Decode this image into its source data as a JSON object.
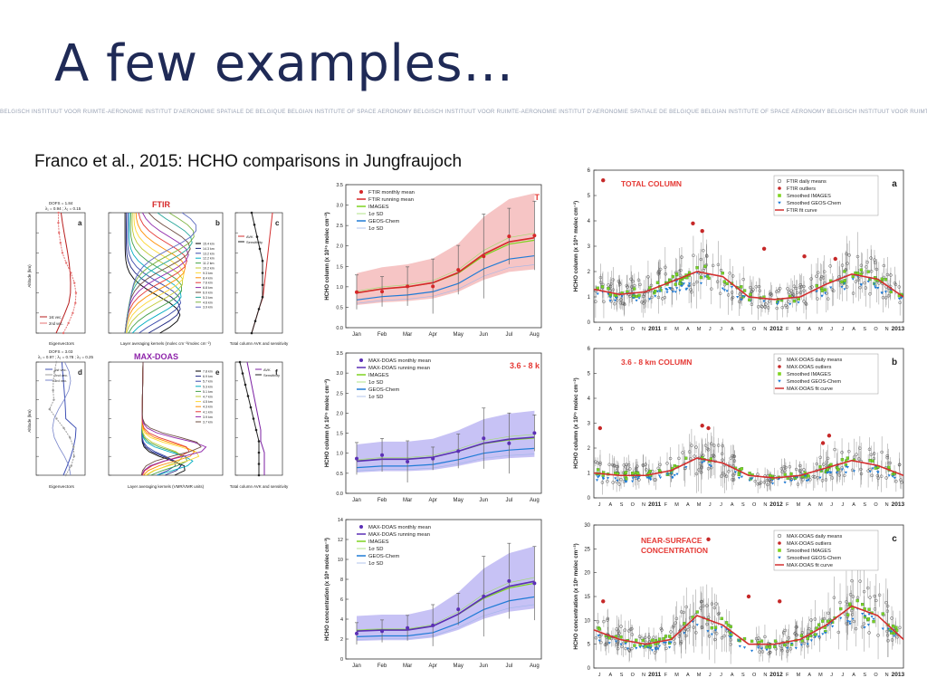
{
  "slide": {
    "title": "A few examples…",
    "banner": "BELGISCH INSTITUUT VOOR RUIMTE-AERONOMIE INSTITUT D'AERONOMIE SPATIALE DE BELGIQUE BELGIAN INSTITUTE OF SPACE AERONOMY BELGISCH INSTITUUT VOOR RUIMTE-AERONOMIE INSTITUT D'AERONOMIE SPATIALE DE BELGIQUE BELGIAN INSTITUTE OF SPACE AERONOMY BELGISCH INSTITUUT VOOR RUIMTE-AERONOMIE INSTITUT D'AERONOMIE",
    "subtitle": "Franco et al., 2015: HCHO comparisons in Jungfraujoch"
  },
  "colors": {
    "title": "#1f2a56",
    "ftir_red": "#d62728",
    "maxdoas_purple": "#5b2fb5",
    "images_green": "#7ed321",
    "geos_blue": "#1f7bd6",
    "sd_fill_red": "#f4b6b6",
    "sd_fill_purple": "#b9b3f2"
  },
  "left_figure": {
    "ftir_label": "FTIR",
    "maxdoas_label": "MAX-DOAS",
    "ftir_dofs": "DOFS = 1.84",
    "ftir_lambda": "λ₁ = 0.94 ; λ₂ = 0.15",
    "maxdoas_dofs": "DOFS = 3.03",
    "maxdoas_lambda": "λ₁ = 0.97 ; λ₂ = 0.78 ; λ₃ = 0.25",
    "panel_letters": [
      "a",
      "b",
      "c",
      "d",
      "e",
      "f"
    ],
    "ylabel": "Altitude (km)",
    "xlabel_eig": "Eigenvectors",
    "xlabel_avk_ftir": "Layer averaging kernels (molec cm⁻²/molec cm⁻²)",
    "xlabel_avk_maxdoas": "Layer averaging kernels (VMR/VMR units)",
    "xlabel_tc": "Total column AVK and sensitivity",
    "legend_eig_ftir": [
      "1st vec.",
      "2nd vec."
    ],
    "legend_eig_maxdoas": [
      "1st vec.",
      "2nd vec.",
      "3rd vec."
    ],
    "legend_tc": [
      "AVK",
      "Sensitivity"
    ],
    "ftir_layers": [
      "15.4 km",
      "14.3 km",
      "13.2 km",
      "12.2 km",
      "11.2 km",
      "10.2 km",
      "9.3 km",
      "8.4 km",
      "7.6 km",
      "6.8 km",
      "6.0 km",
      "5.3 km",
      "4.6 km",
      "3.9 km"
    ],
    "maxdoas_layers": [
      "7.8 km",
      "6.9 km",
      "5.7 km",
      "5.3 km",
      "5.1 km",
      "4.7 km",
      "4.5 km",
      "4.3 km",
      "4.1 km",
      "3.9 km",
      "3.7 km"
    ]
  },
  "middle_figure": {
    "months": [
      "Jan",
      "Feb",
      "Mar",
      "Apr",
      "May",
      "Jun",
      "Jul",
      "Aug"
    ],
    "top": {
      "ylabel": "HCHO column (x 10¹⁵ molec cm⁻²)",
      "yticks": [
        "0.0",
        "0.5",
        "1.0",
        "1.5",
        "2.0",
        "2.5",
        "3.0",
        "3.5"
      ],
      "legend": [
        "FTIR monthly mean",
        "FTIR running mean",
        "IMAGES",
        "1σ SD",
        "GEOS-Chem",
        "1σ SD"
      ],
      "corner_label": "T"
    },
    "mid": {
      "ylabel": "HCHO column (x 10¹⁵ molec cm⁻²)",
      "yticks": [
        "0.0",
        "0.5",
        "1.0",
        "1.5",
        "2.0",
        "2.5",
        "3.0",
        "3.5"
      ],
      "legend": [
        "MAX-DOAS monthly mean",
        "MAX-DOAS running mean",
        "IMAGES",
        "1σ SD",
        "GEOS-Chem",
        "1σ SD"
      ],
      "corner_label": "3.6 - 8 k"
    },
    "bottom": {
      "ylabel": "HCHO concentration (x 10⁹ molec cm⁻³)",
      "yticks": [
        "0",
        "2",
        "4",
        "6",
        "8",
        "10",
        "12",
        "14"
      ],
      "legend": [
        "MAX-DOAS monthly mean",
        "MAX-DOAS running mean",
        "IMAGES",
        "1σ SD",
        "GEOS-Chem",
        "1σ SD"
      ]
    }
  },
  "right_figure": {
    "months_row": [
      "J",
      "A",
      "S",
      "O",
      "N",
      "2011",
      "F",
      "M",
      "A",
      "M",
      "J",
      "J",
      "A",
      "S",
      "O",
      "N",
      "2012",
      "F",
      "M",
      "A",
      "M",
      "J",
      "J",
      "A",
      "S",
      "O",
      "N",
      "2013"
    ],
    "a": {
      "title": "TOTAL COLUMN",
      "letter": "a",
      "ylabel": "HCHO column (x 10¹⁵ molec cm⁻²)",
      "yticks": [
        "0",
        "1",
        "2",
        "3",
        "4",
        "5",
        "6"
      ],
      "legend": [
        "FTIR daily means",
        "FTIR outliers",
        "Smoothed IMAGES",
        "Smoothed GEOS-Chem",
        "FTIR fit curve"
      ]
    },
    "b": {
      "title": "3.6 - 8 km COLUMN",
      "letter": "b",
      "ylabel": "HCHO column (x 10¹⁵ molec cm⁻²)",
      "yticks": [
        "0",
        "1",
        "2",
        "3",
        "4",
        "5",
        "6"
      ],
      "legend": [
        "MAX-DOAS daily means",
        "MAX-DOAS outliers",
        "Smoothed IMAGES",
        "Smoothed GEOS-Chem",
        "MAX-DOAS fit curve"
      ]
    },
    "c": {
      "title": "NEAR-SURFACE CONCENTRATION",
      "title_lines": [
        "NEAR-SURFACE",
        "CONCENTRATION"
      ],
      "letter": "c",
      "ylabel": "HCHO concentration (x 10⁹ molec cm⁻³)",
      "yticks": [
        "0",
        "5",
        "10",
        "15",
        "20",
        "25",
        "30"
      ],
      "legend": [
        "MAX-DOAS daily means",
        "MAX-DOAS outliers",
        "Smoothed IMAGES",
        "Smoothed GEOS-Chem",
        "MAX-DOAS fit curve"
      ]
    }
  }
}
